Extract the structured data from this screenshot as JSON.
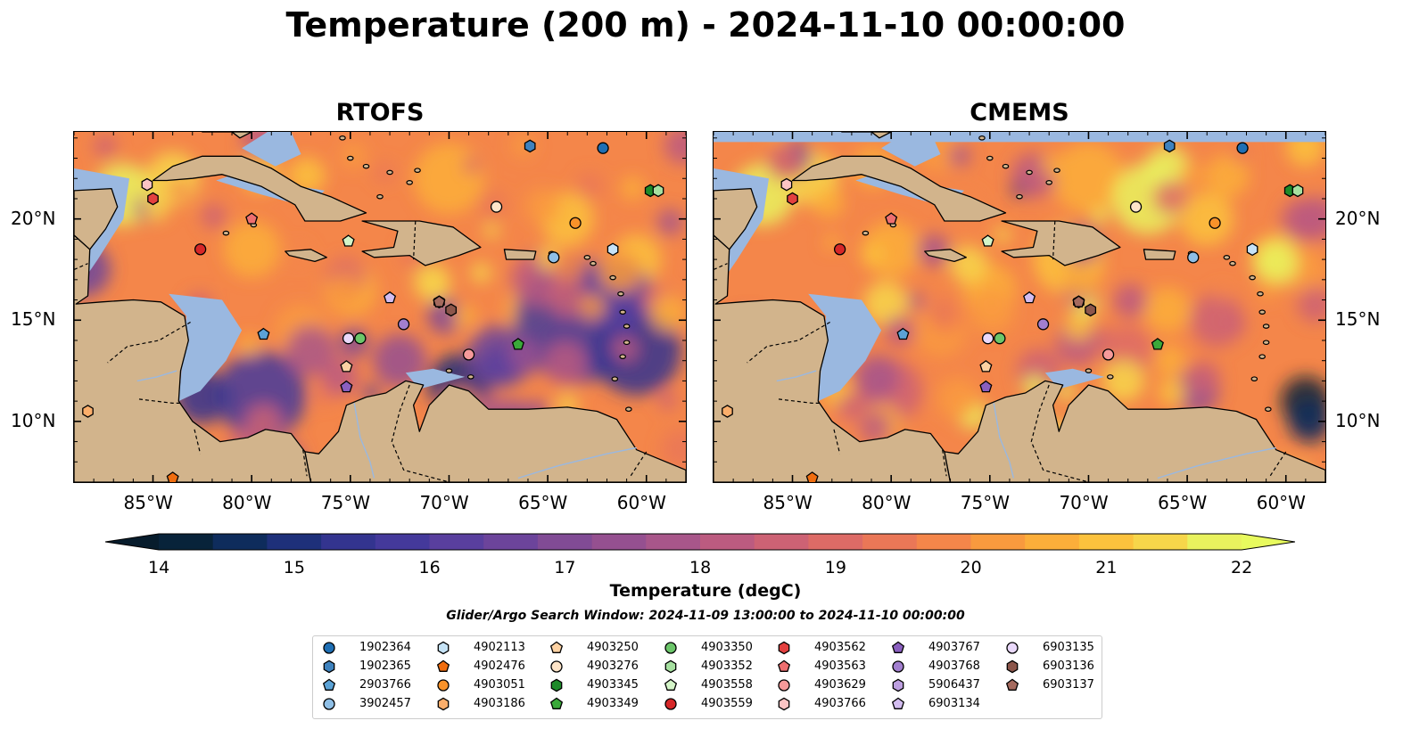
{
  "title": "Temperature (200 m) - 2024-11-10 00:00:00",
  "panels": [
    {
      "title": "RTOFS"
    },
    {
      "title": "CMEMS"
    }
  ],
  "axes": {
    "lon_labels": [
      "85°W",
      "80°W",
      "75°W",
      "70°W",
      "65°W",
      "60°W"
    ],
    "lat_labels": [
      "20°N",
      "15°N",
      "10°N"
    ]
  },
  "colorbar": {
    "label": "Temperature (degC)",
    "min": 14,
    "max": 22,
    "step": 0.5,
    "ticks": [
      "14",
      "15",
      "16",
      "17",
      "18",
      "19",
      "20",
      "21",
      "22"
    ],
    "colors": [
      "#08233a",
      "#0e2c5c",
      "#1e307a",
      "#33348f",
      "#44399b",
      "#593f9e",
      "#6c449b",
      "#814b95",
      "#955090",
      "#a8568a",
      "#bc5b80",
      "#cd6274",
      "#dd6b66",
      "#ea7757",
      "#f4864a",
      "#f99a3e",
      "#fcae3a",
      "#fcc23d",
      "#f7d64a",
      "#e9f25e"
    ],
    "under_color": "#071c2c",
    "over_color": "#e8fa5e"
  },
  "search_window": "Glider/Argo Search Window: 2024-11-09 13:00:00 to 2024-11-10 00:00:00",
  "legend": [
    {
      "id": "1902364",
      "marker": "circle",
      "color": "#1f6fb4"
    },
    {
      "id": "1902365",
      "marker": "hexagon",
      "color": "#3e82be"
    },
    {
      "id": "2903766",
      "marker": "pentagon",
      "color": "#5ba2d6"
    },
    {
      "id": "3902457",
      "marker": "circle",
      "color": "#8fbfe6"
    },
    {
      "id": "4902113",
      "marker": "hexagon",
      "color": "#c6e3f6"
    },
    {
      "id": "4902476",
      "marker": "pentagon",
      "color": "#f06d0f"
    },
    {
      "id": "4903051",
      "marker": "circle",
      "color": "#f8922a"
    },
    {
      "id": "4903186",
      "marker": "hexagon",
      "color": "#fbae6b"
    },
    {
      "id": "4903250",
      "marker": "pentagon",
      "color": "#fdd2a3"
    },
    {
      "id": "4903276",
      "marker": "circle",
      "color": "#fee4c8"
    },
    {
      "id": "4903345",
      "marker": "hexagon",
      "color": "#1e8a2a"
    },
    {
      "id": "4903349",
      "marker": "pentagon",
      "color": "#3aa93a"
    },
    {
      "id": "4903350",
      "marker": "circle",
      "color": "#6cc66a"
    },
    {
      "id": "4903352",
      "marker": "hexagon",
      "color": "#a6e0a0"
    },
    {
      "id": "4903558",
      "marker": "pentagon",
      "color": "#d4f5c8"
    },
    {
      "id": "4903559",
      "marker": "circle",
      "color": "#d62728"
    },
    {
      "id": "4903562",
      "marker": "hexagon",
      "color": "#e3403f"
    },
    {
      "id": "4903563",
      "marker": "pentagon",
      "color": "#ee6f70"
    },
    {
      "id": "4903629",
      "marker": "circle",
      "color": "#f69a9a"
    },
    {
      "id": "4903766",
      "marker": "hexagon",
      "color": "#fbc4c4"
    },
    {
      "id": "4903767",
      "marker": "pentagon",
      "color": "#8a5fbf"
    },
    {
      "id": "4903768",
      "marker": "circle",
      "color": "#a27fcf"
    },
    {
      "id": "5906437",
      "marker": "hexagon",
      "color": "#bd9fe0"
    },
    {
      "id": "6903134",
      "marker": "pentagon",
      "color": "#d3bdf0"
    },
    {
      "id": "6903135",
      "marker": "circle",
      "color": "#ead9fb"
    },
    {
      "id": "6903136",
      "marker": "hexagon",
      "color": "#8c564b"
    },
    {
      "id": "6903137",
      "marker": "pentagon",
      "color": "#a56a5e"
    }
  ],
  "floats": [
    {
      "id": "1902364",
      "lon": -62.2,
      "lat": 23.5
    },
    {
      "id": "1902365",
      "lon": -65.9,
      "lat": 23.6
    },
    {
      "id": "2903766",
      "lon": -79.4,
      "lat": 14.3
    },
    {
      "id": "3902457",
      "lon": -64.7,
      "lat": 18.1
    },
    {
      "id": "4902113",
      "lon": -61.7,
      "lat": 18.5
    },
    {
      "id": "4902476",
      "lon": -84.0,
      "lat": 7.2
    },
    {
      "id": "4903051",
      "lon": -63.6,
      "lat": 19.8
    },
    {
      "id": "4903186",
      "lon": -88.3,
      "lat": 10.5
    },
    {
      "id": "4903250",
      "lon": -75.2,
      "lat": 12.7
    },
    {
      "id": "4903276",
      "lon": -67.6,
      "lat": 20.6
    },
    {
      "id": "4903345",
      "lon": -59.8,
      "lat": 21.4
    },
    {
      "id": "4903349",
      "lon": -66.5,
      "lat": 13.8
    },
    {
      "id": "4903350",
      "lon": -74.5,
      "lat": 14.1
    },
    {
      "id": "4903352",
      "lon": -59.4,
      "lat": 21.4
    },
    {
      "id": "4903558",
      "lon": -75.1,
      "lat": 18.9
    },
    {
      "id": "4903559",
      "lon": -82.6,
      "lat": 18.5
    },
    {
      "id": "4903562",
      "lon": -85.0,
      "lat": 21.0
    },
    {
      "id": "4903563",
      "lon": -80.0,
      "lat": 20.0
    },
    {
      "id": "4903629",
      "lon": -69.0,
      "lat": 13.3
    },
    {
      "id": "4903766",
      "lon": -85.3,
      "lat": 21.7
    },
    {
      "id": "4903767",
      "lon": -75.2,
      "lat": 11.7
    },
    {
      "id": "4903768",
      "lon": -72.3,
      "lat": 14.8
    },
    {
      "id": "5906437",
      "lon": -70.5,
      "lat": 15.9
    },
    {
      "id": "6903134",
      "lon": -73.0,
      "lat": 16.1
    },
    {
      "id": "6903135",
      "lon": -75.1,
      "lat": 14.1
    },
    {
      "id": "6903136",
      "lon": -69.9,
      "lat": 15.5
    },
    {
      "id": "6903137",
      "lon": -70.5,
      "lat": 15.9
    }
  ],
  "map_extent": {
    "lon": [
      -89,
      -58
    ],
    "lat": [
      7,
      24.3
    ]
  },
  "fill_colors": {
    "land": "#d2b48c",
    "shelf": "#9ab8e0",
    "border": "#000000"
  }
}
